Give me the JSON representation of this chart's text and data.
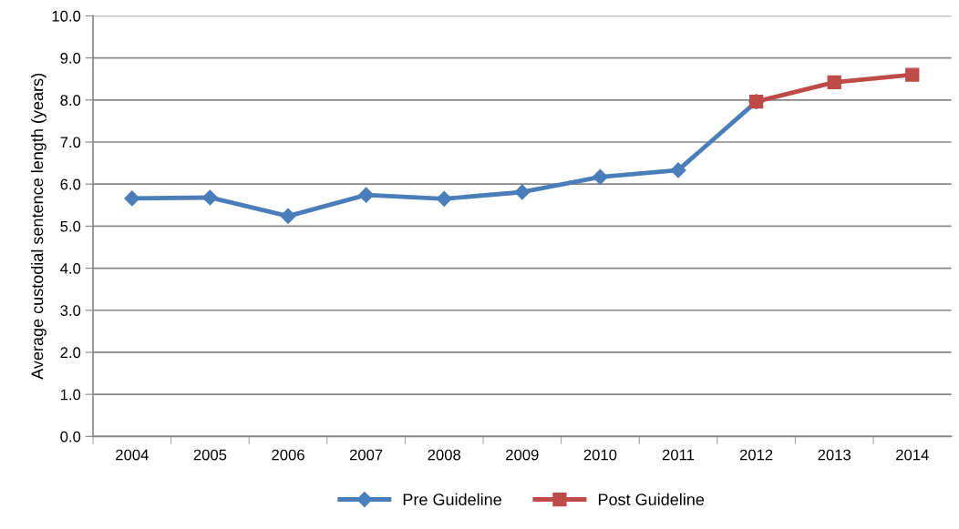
{
  "chart_data": {
    "type": "line",
    "ylabel": "Average custodial sentence length (years)",
    "categories": [
      "2004",
      "2005",
      "2006",
      "2007",
      "2008",
      "2009",
      "2010",
      "2011",
      "2012",
      "2013",
      "2014"
    ],
    "series": [
      {
        "name": "Pre Guideline",
        "color": "#4a7ebb",
        "marker": "diamond",
        "values": [
          5.66,
          5.68,
          5.24,
          5.74,
          5.65,
          5.81,
          6.17,
          6.33,
          7.96,
          null,
          null
        ]
      },
      {
        "name": "Post Guideline",
        "color": "#be4b48",
        "marker": "square",
        "values": [
          null,
          null,
          null,
          null,
          null,
          null,
          null,
          null,
          7.96,
          8.42,
          8.6
        ]
      }
    ],
    "ylim": [
      0,
      10
    ],
    "yticks": [
      {
        "value": 0,
        "label": "0.0"
      },
      {
        "value": 1,
        "label": "1.0"
      },
      {
        "value": 2,
        "label": "2.0"
      },
      {
        "value": 3,
        "label": "3.0"
      },
      {
        "value": 4,
        "label": "4.0"
      },
      {
        "value": 5,
        "label": "5.0"
      },
      {
        "value": 6,
        "label": "6.0"
      },
      {
        "value": 7,
        "label": "7.0"
      },
      {
        "value": 8,
        "label": "8.0"
      },
      {
        "value": 9,
        "label": "9.0"
      },
      {
        "value": 10,
        "label": "10.0"
      }
    ],
    "grid": "y",
    "legend": "bottom"
  }
}
